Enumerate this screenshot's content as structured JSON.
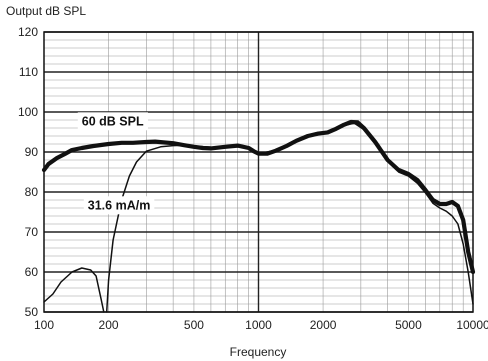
{
  "chart_data": {
    "type": "line",
    "title": "",
    "ylabel": "Output dB SPL",
    "xlabel": "Frequency",
    "x_scale": "log",
    "xlim": [
      100,
      10000
    ],
    "ylim": [
      50,
      120
    ],
    "grid": true,
    "x_ticks": [
      100,
      200,
      500,
      1000,
      2000,
      5000,
      10000
    ],
    "x_tick_labels": [
      "100",
      "200",
      "500",
      "1000",
      "2000",
      "5000",
      "10000"
    ],
    "y_ticks": [
      50,
      60,
      70,
      80,
      90,
      100,
      110,
      120
    ],
    "y_tick_labels": [
      "50",
      "60",
      "70",
      "80",
      "90",
      "100",
      "110",
      "120"
    ],
    "annotations": [
      {
        "text": "60 dB SPL",
        "x": 150,
        "y": 97.5
      },
      {
        "text": "31.6 mA/m",
        "x": 160,
        "y": 76.5
      }
    ],
    "series": [
      {
        "label": "60 dB SPL",
        "stroke": "#111111",
        "weight": "thick",
        "points": [
          [
            100,
            85.5
          ],
          [
            105,
            87
          ],
          [
            115,
            88.5
          ],
          [
            125,
            89.5
          ],
          [
            135,
            90.5
          ],
          [
            150,
            91
          ],
          [
            170,
            91.5
          ],
          [
            200,
            92
          ],
          [
            230,
            92.3
          ],
          [
            260,
            92.3
          ],
          [
            300,
            92.5
          ],
          [
            330,
            92.6
          ],
          [
            360,
            92.4
          ],
          [
            400,
            92.2
          ],
          [
            450,
            91.7
          ],
          [
            500,
            91.3
          ],
          [
            550,
            91
          ],
          [
            600,
            90.9
          ],
          [
            700,
            91.3
          ],
          [
            800,
            91.6
          ],
          [
            900,
            91
          ],
          [
            950,
            90.2
          ],
          [
            1000,
            89.6
          ],
          [
            1100,
            89.6
          ],
          [
            1200,
            90.3
          ],
          [
            1350,
            91.5
          ],
          [
            1500,
            92.8
          ],
          [
            1700,
            94
          ],
          [
            1900,
            94.6
          ],
          [
            2100,
            94.9
          ],
          [
            2300,
            95.8
          ],
          [
            2500,
            96.8
          ],
          [
            2700,
            97.5
          ],
          [
            2900,
            97.4
          ],
          [
            3100,
            96
          ],
          [
            3500,
            92.5
          ],
          [
            4000,
            88
          ],
          [
            4500,
            85.5
          ],
          [
            5000,
            84.5
          ],
          [
            5500,
            83
          ],
          [
            6000,
            80.5
          ],
          [
            6500,
            78
          ],
          [
            7000,
            77
          ],
          [
            7500,
            77
          ],
          [
            8000,
            77.5
          ],
          [
            8500,
            76.5
          ],
          [
            9000,
            73
          ],
          [
            9500,
            65
          ],
          [
            10000,
            60
          ]
        ]
      },
      {
        "label": "31.6 mA/m",
        "stroke": "#111111",
        "weight": "thin",
        "points": [
          [
            100,
            52.5
          ],
          [
            110,
            54.5
          ],
          [
            120,
            57.5
          ],
          [
            135,
            60
          ],
          [
            150,
            61
          ],
          [
            165,
            60.5
          ],
          [
            175,
            59
          ],
          [
            185,
            53
          ],
          [
            190,
            50
          ]
        ]
      },
      {
        "label": "31.6 mA/m",
        "stroke": "#111111",
        "weight": "thin",
        "points": [
          [
            196,
            50
          ],
          [
            200,
            58
          ],
          [
            210,
            68
          ],
          [
            230,
            78
          ],
          [
            250,
            84
          ],
          [
            270,
            87.5
          ],
          [
            300,
            90.2
          ],
          [
            350,
            91.3
          ],
          [
            400,
            91.6
          ],
          [
            450,
            91.7
          ],
          [
            500,
            91.5
          ],
          [
            600,
            91.2
          ],
          [
            700,
            91.2
          ],
          [
            800,
            91.5
          ],
          [
            900,
            90.8
          ],
          [
            1000,
            89.6
          ],
          [
            1200,
            90.4
          ],
          [
            1500,
            93
          ],
          [
            2000,
            94.7
          ],
          [
            2500,
            96.6
          ],
          [
            2800,
            97.2
          ],
          [
            3100,
            95.6
          ],
          [
            3500,
            92.3
          ],
          [
            4000,
            87.6
          ],
          [
            4500,
            85
          ],
          [
            5000,
            84
          ],
          [
            5500,
            82.2
          ],
          [
            6000,
            79.8
          ],
          [
            6500,
            77.2
          ],
          [
            7000,
            76
          ],
          [
            7500,
            75.2
          ],
          [
            8000,
            74
          ],
          [
            8500,
            72
          ],
          [
            9000,
            67
          ],
          [
            9500,
            60
          ],
          [
            10000,
            52
          ]
        ]
      }
    ]
  }
}
